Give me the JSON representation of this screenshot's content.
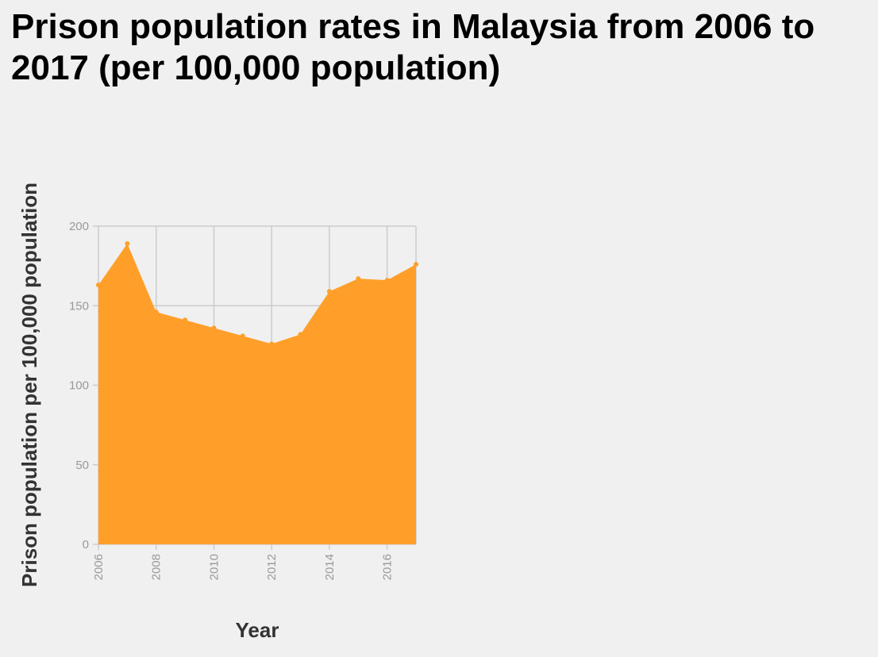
{
  "chart_data": {
    "type": "area",
    "title": "Prison population rates in Malaysia from 2006 to 2017 (per 100,000 population)",
    "xlabel": "Year",
    "ylabel": "Prison population per 100,000 population",
    "x": [
      2006,
      2007,
      2008,
      2009,
      2010,
      2011,
      2012,
      2013,
      2014,
      2015,
      2016,
      2017
    ],
    "series": [
      {
        "values": [
          163,
          189,
          146,
          141,
          136,
          131,
          126,
          132,
          159,
          167,
          166,
          176
        ]
      }
    ],
    "xlim": [
      2006,
      2017
    ],
    "ylim": [
      0,
      200
    ],
    "x_ticks": [
      "2006",
      "2008",
      "2010",
      "2012",
      "2014",
      "2016"
    ],
    "y_ticks": [
      "0",
      "50",
      "100",
      "150",
      "200"
    ],
    "grid": true,
    "legend": "none",
    "colors": {
      "area": "#ff9f2a",
      "grid": "#cccccc",
      "tick_text": "#999999",
      "background": "#f0f0f0"
    }
  }
}
